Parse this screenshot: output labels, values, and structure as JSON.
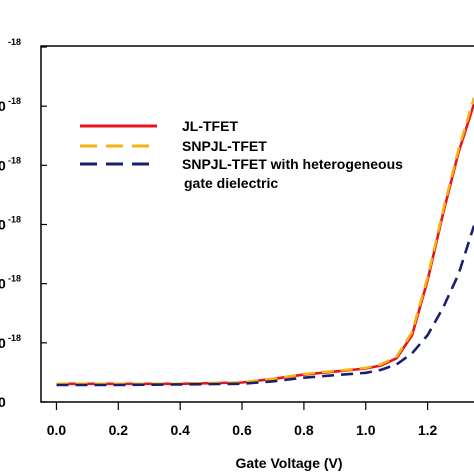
{
  "chart_data": {
    "type": "line",
    "xlabel": "Gate Voltage (V)",
    "ylabel": "",
    "xlim": [
      -0.05,
      1.35
    ],
    "ylim": [
      0,
      6
    ],
    "x_ticks": [
      "0.0",
      "0.2",
      "0.4",
      "0.6",
      "0.8",
      "1.0",
      "1.2"
    ],
    "y_tick_labels": [
      {
        "mantissa": "",
        "exponent": "-18"
      },
      {
        "mantissa": "0",
        "exponent": "-18"
      },
      {
        "mantissa": "0",
        "exponent": "-18"
      },
      {
        "mantissa": "0",
        "exponent": "-18"
      },
      {
        "mantissa": "0",
        "exponent": "-18"
      },
      {
        "mantissa": "0",
        "exponent": "-18"
      },
      {
        "mantissa": "0",
        "exponent": ""
      }
    ],
    "legend_position": "top-center",
    "grid": false,
    "series": [
      {
        "name": "JL-TFET",
        "color": "#e8141c",
        "dash": "solid",
        "x": [
          0.0,
          0.2,
          0.4,
          0.6,
          0.7,
          0.8,
          0.9,
          1.0,
          1.05,
          1.1,
          1.15,
          1.2,
          1.25,
          1.3,
          1.35
        ],
        "y": [
          0.3,
          0.3,
          0.3,
          0.32,
          0.38,
          0.45,
          0.5,
          0.55,
          0.6,
          0.72,
          1.1,
          2.0,
          3.1,
          4.1,
          4.9
        ]
      },
      {
        "name": "SNPJL-TFET",
        "color": "#f5b315",
        "dash": "dashed",
        "x": [
          0.0,
          0.2,
          0.4,
          0.6,
          0.7,
          0.8,
          0.9,
          1.0,
          1.05,
          1.1,
          1.15,
          1.2,
          1.25,
          1.3,
          1.35
        ],
        "y": [
          0.3,
          0.3,
          0.3,
          0.32,
          0.38,
          0.46,
          0.51,
          0.56,
          0.62,
          0.75,
          1.15,
          2.05,
          3.15,
          4.15,
          5.0
        ]
      },
      {
        "name": "SNPJL-TFET with heterogeneous gate dielectric",
        "color": "#1a1f6b",
        "dash": "dashed",
        "x": [
          0.0,
          0.2,
          0.4,
          0.6,
          0.7,
          0.8,
          0.9,
          1.0,
          1.05,
          1.1,
          1.15,
          1.2,
          1.25,
          1.3,
          1.35
        ],
        "y": [
          0.28,
          0.28,
          0.29,
          0.3,
          0.34,
          0.4,
          0.44,
          0.48,
          0.53,
          0.62,
          0.8,
          1.1,
          1.55,
          2.1,
          2.9
        ]
      }
    ],
    "legend": {
      "line1": "JL-TFET",
      "line2": "SNPJL-TFET",
      "line3a": "SNPJL-TFET with heterogeneous",
      "line3b": "gate dielectric"
    }
  }
}
